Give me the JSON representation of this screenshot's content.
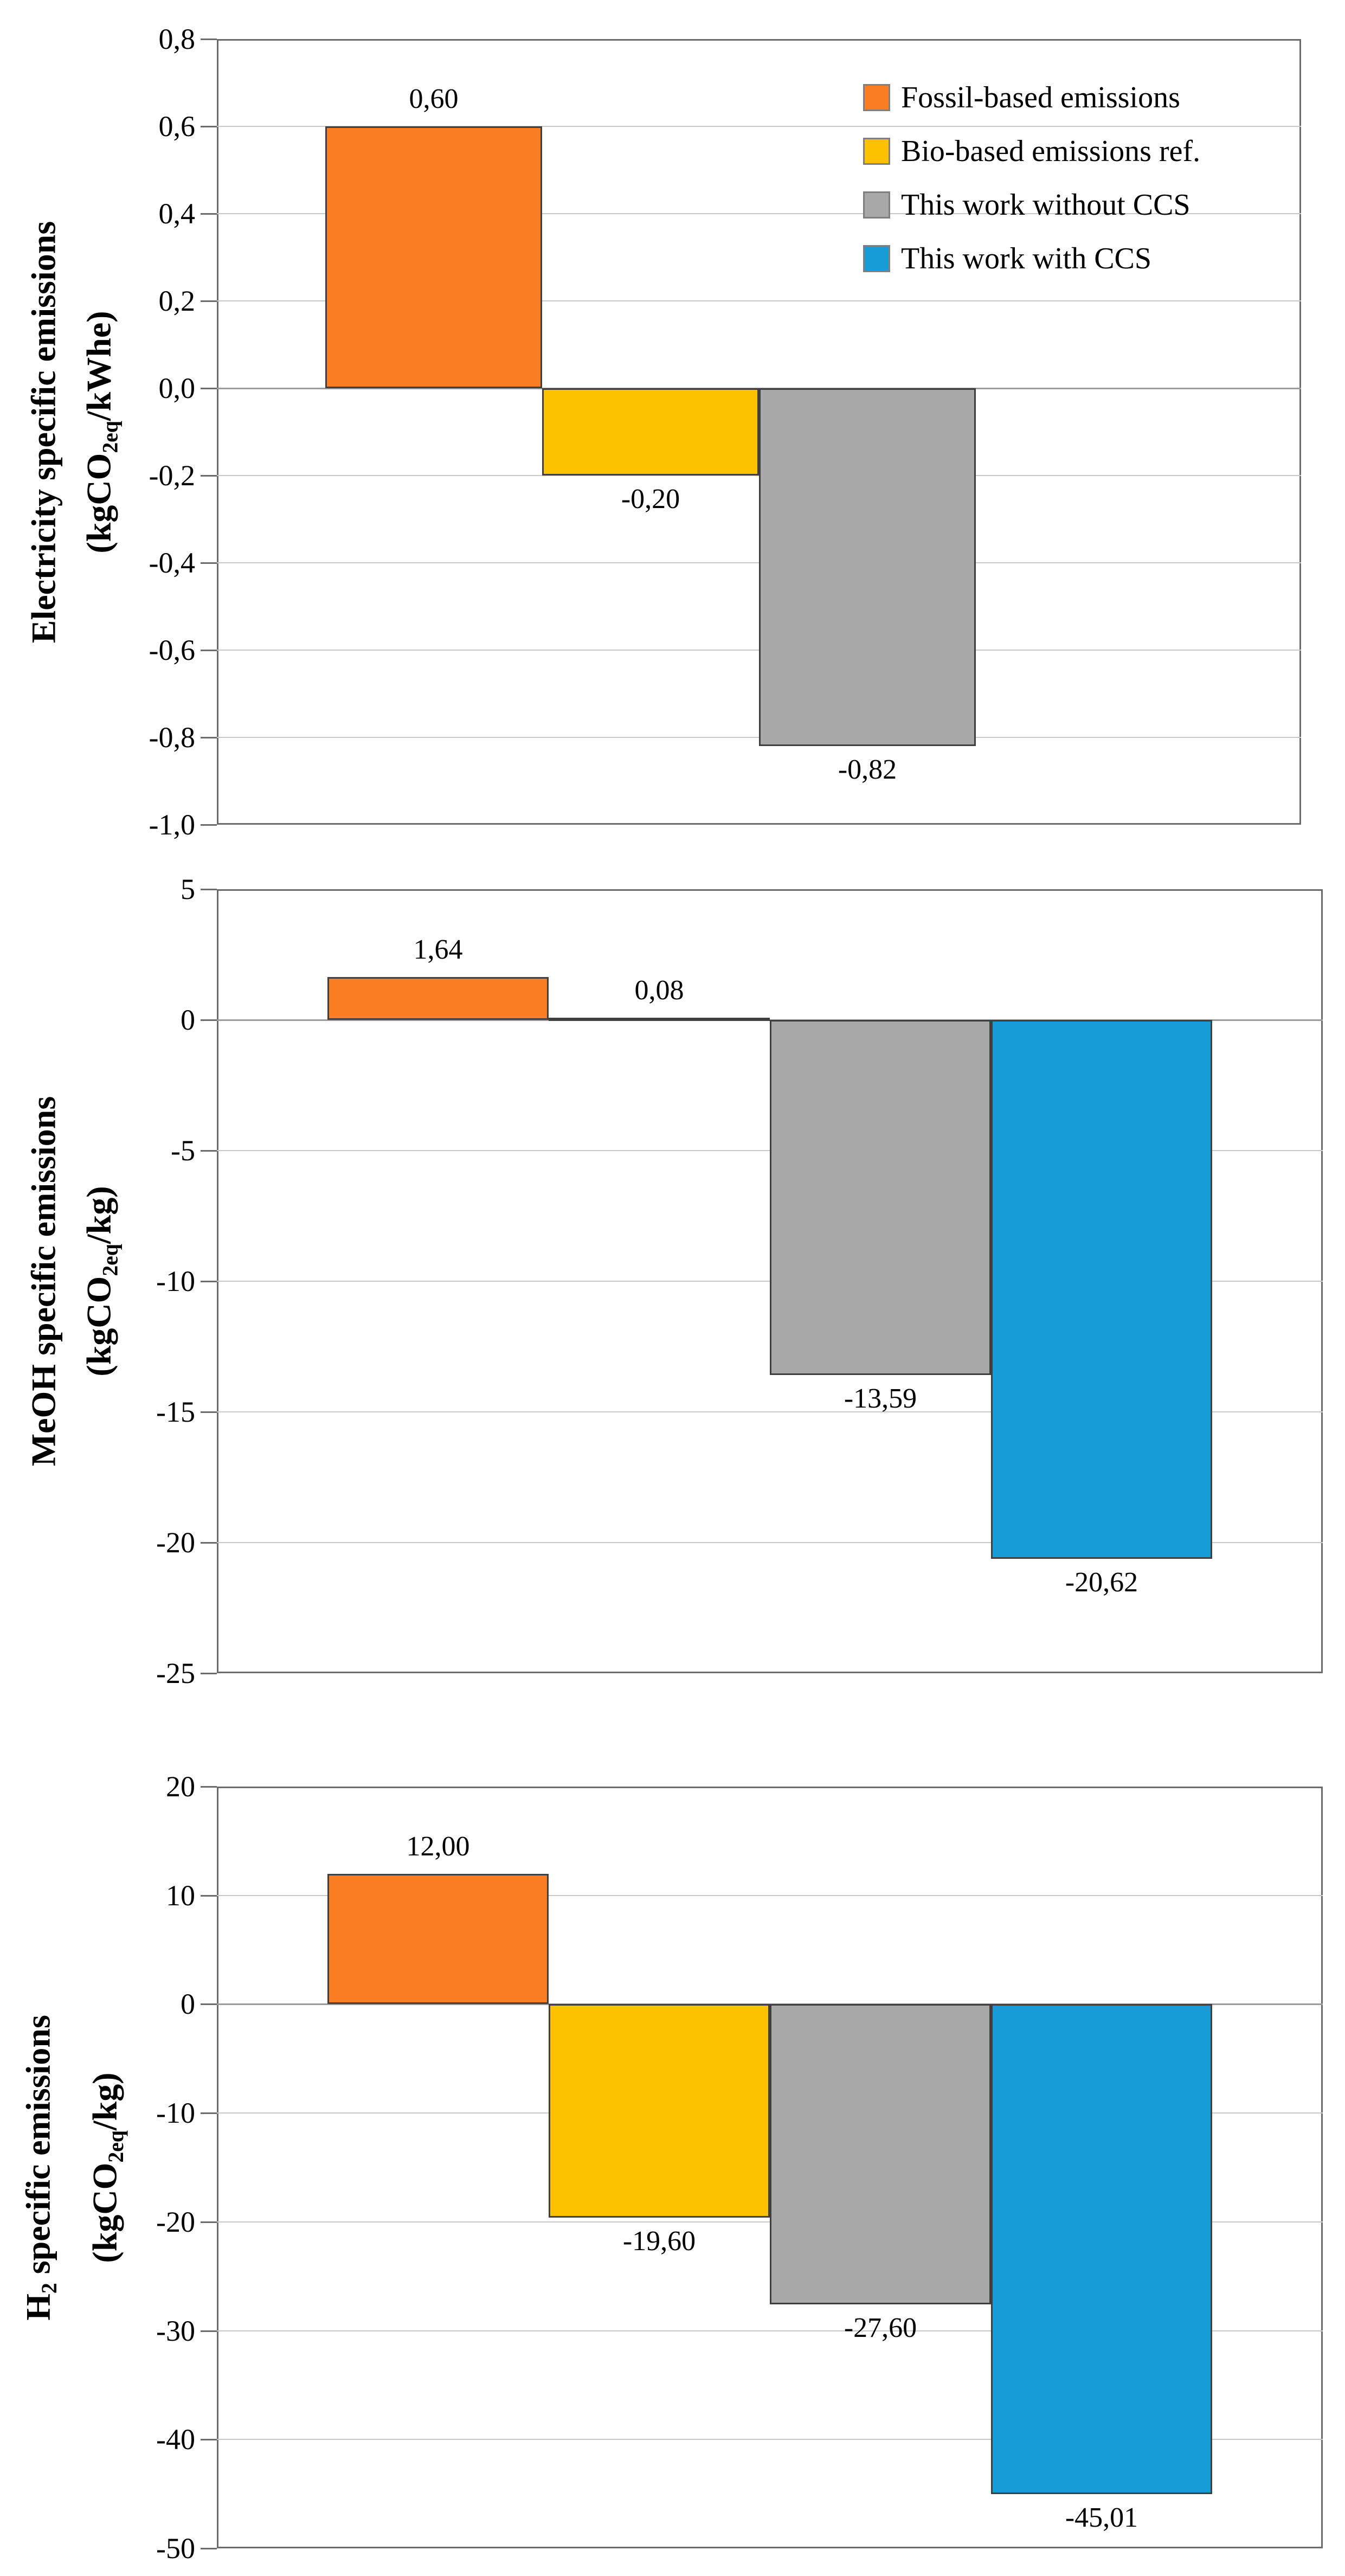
{
  "figure": {
    "background": "#ffffff"
  },
  "palette": {
    "fossil": "#FB7D23",
    "bio": "#FEC100",
    "no_ccs": "#A8A8A8",
    "ccs": "#189CD8",
    "bar_border": "#3F3F3F",
    "grid": "#C9C9C9",
    "zero_line": "#9B9B9B",
    "box_border": "#6B6B6B",
    "text": "#000000"
  },
  "legend": {
    "position": "top-right-of-first-chart",
    "items": [
      {
        "series": "fossil",
        "label": "Fossil-based emissions"
      },
      {
        "series": "bio",
        "label": "Bio-based emissions ref."
      },
      {
        "series": "no_ccs",
        "label": "This work without CCS"
      },
      {
        "series": "ccs",
        "label": "This work with CCS"
      }
    ]
  },
  "chart_data": [
    {
      "id": "electricity",
      "type": "bar",
      "ylabel_segments": [
        {
          "t": "Electricity specific emissions"
        }
      ],
      "ylabel_unit_segments": [
        {
          "t": "(kgCO"
        },
        {
          "t": "2eq",
          "sub": true
        },
        {
          "t": "/kWhe)"
        }
      ],
      "ylim": [
        -1.0,
        0.8
      ],
      "grid": true,
      "yticks": [
        {
          "v": 0.8,
          "label": "0,8"
        },
        {
          "v": 0.6,
          "label": "0,6"
        },
        {
          "v": 0.4,
          "label": "0,4"
        },
        {
          "v": 0.2,
          "label": "0,2"
        },
        {
          "v": 0.0,
          "label": "0,0"
        },
        {
          "v": -0.2,
          "label": "-0,2"
        },
        {
          "v": -0.4,
          "label": "-0,4"
        },
        {
          "v": -0.6,
          "label": "-0,6"
        },
        {
          "v": -0.8,
          "label": "-0,8"
        },
        {
          "v": -1.0,
          "label": "-1,0"
        }
      ],
      "slots": 4,
      "bars": [
        {
          "series": "fossil",
          "slot": 0,
          "value": 0.6,
          "label": "0,60"
        },
        {
          "series": "bio",
          "slot": 1,
          "value": -0.2,
          "label": "-0,20"
        },
        {
          "series": "no_ccs",
          "slot": 2,
          "value": -0.82,
          "label": "-0,82"
        }
      ]
    },
    {
      "id": "meoh",
      "type": "bar",
      "ylabel_segments": [
        {
          "t": "MeOH specific emissions"
        }
      ],
      "ylabel_unit_segments": [
        {
          "t": "(kgCO"
        },
        {
          "t": "2eq",
          "sub": true
        },
        {
          "t": "/kg)"
        }
      ],
      "ylim": [
        -25,
        5
      ],
      "grid": true,
      "yticks": [
        {
          "v": 5,
          "label": "5"
        },
        {
          "v": 0,
          "label": "0"
        },
        {
          "v": -5,
          "label": "-5"
        },
        {
          "v": -10,
          "label": "-10"
        },
        {
          "v": -15,
          "label": "-15"
        },
        {
          "v": -20,
          "label": "-20"
        },
        {
          "v": -25,
          "label": "-25"
        }
      ],
      "slots": 4,
      "bars": [
        {
          "series": "fossil",
          "slot": 0,
          "value": 1.64,
          "label": "1,64"
        },
        {
          "series": "bio",
          "slot": 1,
          "value": 0.08,
          "label": "0,08"
        },
        {
          "series": "no_ccs",
          "slot": 2,
          "value": -13.59,
          "label": "-13,59"
        },
        {
          "series": "ccs",
          "slot": 3,
          "value": -20.62,
          "label": "-20,62"
        }
      ]
    },
    {
      "id": "h2",
      "type": "bar",
      "ylabel_segments": [
        {
          "t": "H"
        },
        {
          "t": "2",
          "sub": true
        },
        {
          "t": " specific emissions"
        }
      ],
      "ylabel_unit_segments": [
        {
          "t": "(kgCO"
        },
        {
          "t": "2eq",
          "sub": true
        },
        {
          "t": "/kg)"
        }
      ],
      "ylim": [
        -50,
        20
      ],
      "grid": true,
      "yticks": [
        {
          "v": 20,
          "label": "20"
        },
        {
          "v": 10,
          "label": "10"
        },
        {
          "v": 0,
          "label": "0"
        },
        {
          "v": -10,
          "label": "-10"
        },
        {
          "v": -20,
          "label": "-20"
        },
        {
          "v": -30,
          "label": "-30"
        },
        {
          "v": -40,
          "label": "-40"
        },
        {
          "v": -50,
          "label": "-50"
        }
      ],
      "slots": 4,
      "bars": [
        {
          "series": "fossil",
          "slot": 0,
          "value": 12.0,
          "label": "12,00"
        },
        {
          "series": "bio",
          "slot": 1,
          "value": -19.6,
          "label": "-19,60"
        },
        {
          "series": "no_ccs",
          "slot": 2,
          "value": -27.6,
          "label": "-27,60"
        },
        {
          "series": "ccs",
          "slot": 3,
          "value": -45.01,
          "label": "-45,01"
        }
      ]
    }
  ]
}
